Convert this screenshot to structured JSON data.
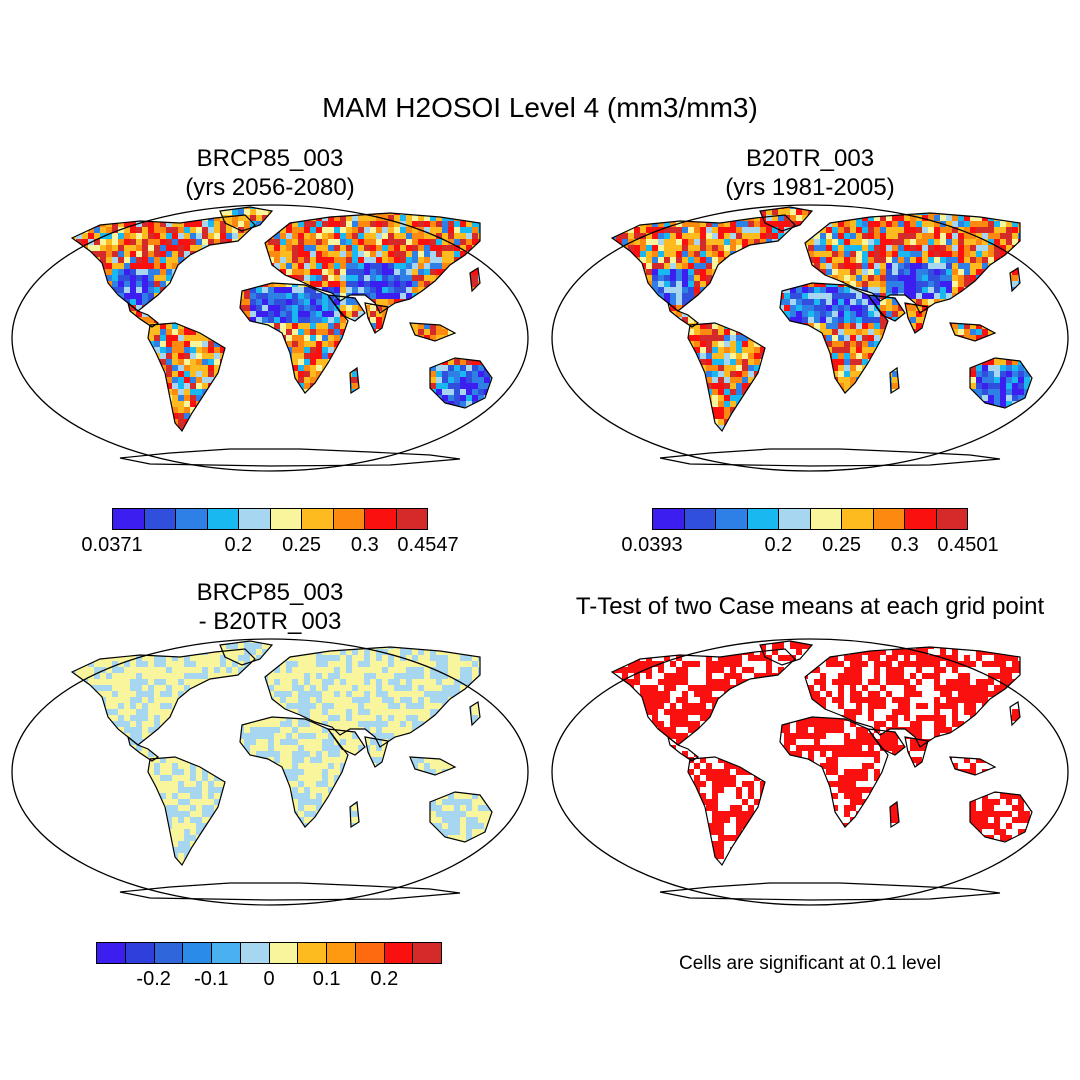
{
  "title": "MAM H2OSOI Level 4 (mm3/mm3)",
  "panels": {
    "top_left": {
      "line1": "BRCP85_003",
      "line2": "(yrs 2056-2080)"
    },
    "top_right": {
      "line1": "B20TR_003",
      "line2": "(yrs 1981-2005)"
    },
    "bottom_left": {
      "line1": "BRCP85_003",
      "line2": "- B20TR_003"
    },
    "bottom_right": {
      "line1": "T-Test of two Case means at each grid point"
    }
  },
  "colorbars": {
    "top_left": {
      "colors": [
        "#3d1ef0",
        "#2f4fdc",
        "#2e7fe6",
        "#1ab8f0",
        "#a6d6f0",
        "#f8f59c",
        "#fdbb20",
        "#fd8a10",
        "#fb1010",
        "#d42a2a"
      ],
      "labels": [
        "0.0371",
        "0.2",
        "0.25",
        "0.3",
        "0.4547"
      ]
    },
    "top_right": {
      "colors": [
        "#3d1ef0",
        "#2f4fdc",
        "#2e7fe6",
        "#1ab8f0",
        "#a6d6f0",
        "#f8f59c",
        "#fdbb20",
        "#fd8a10",
        "#fb1010",
        "#d42a2a"
      ],
      "labels": [
        "0.0393",
        "0.2",
        "0.25",
        "0.3",
        "0.4501"
      ]
    },
    "bottom_left": {
      "colors": [
        "#3d1ef0",
        "#2e3fdc",
        "#2f66dc",
        "#2b8be8",
        "#4ab0f0",
        "#a6d6f0",
        "#f8f59c",
        "#fdbb20",
        "#fd9a10",
        "#fd6a10",
        "#fb1010",
        "#d42a2a"
      ],
      "labels": [
        "-0.2",
        "-0.1",
        "0",
        "0.1",
        "0.2"
      ]
    }
  },
  "significance_note": "Cells are significant at 0.1 level"
}
